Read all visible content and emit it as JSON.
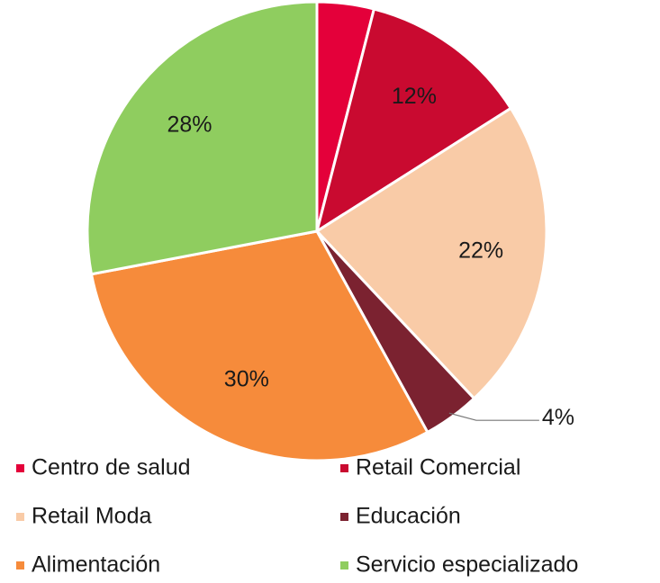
{
  "chart_data": {
    "type": "pie",
    "categories": [
      "Centro de salud",
      "Retail Comercial",
      "Retail Moda",
      "Educación",
      "Alimentación",
      "Servicio especializado"
    ],
    "values": [
      4,
      12,
      22,
      4,
      30,
      28
    ],
    "value_labels": [
      null,
      "12%",
      "22%",
      "4%",
      "30%",
      "28%"
    ],
    "colors": [
      "#e4003a",
      "#c90a30",
      "#f9cba7",
      "#7b2230",
      "#f68b3b",
      "#8fcd5f"
    ],
    "legend": "bottom"
  }
}
